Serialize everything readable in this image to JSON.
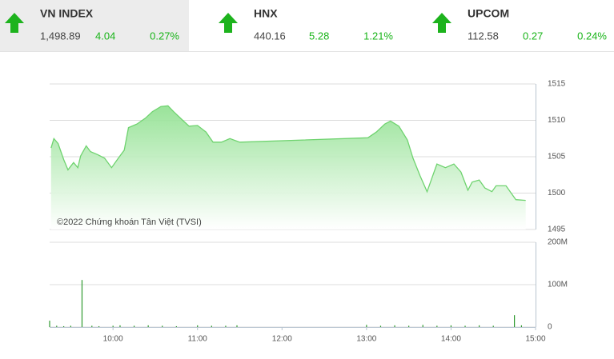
{
  "header": {
    "indices": [
      {
        "name": "VN INDEX",
        "value": "1,498.89",
        "change": "4.04",
        "percent": "0.27%"
      },
      {
        "name": "HNX",
        "value": "440.16",
        "change": "5.28",
        "percent": "1.21%"
      },
      {
        "name": "UPCOM",
        "value": "112.58",
        "change": "0.27",
        "percent": "0.24%"
      }
    ]
  },
  "chart_data": [
    {
      "type": "area",
      "annotation": "©2022 Chứng khoán Tân Việt (TVSI)",
      "xlim": [
        "09:15",
        "15:00"
      ],
      "ylim": [
        1495,
        1515
      ],
      "yticks": [
        1495,
        1500,
        1505,
        1510,
        1515
      ],
      "grid": true,
      "x": [
        "09:16",
        "09:18",
        "09:21",
        "09:25",
        "09:28",
        "09:32",
        "09:35",
        "09:37",
        "09:41",
        "09:44",
        "09:49",
        "09:54",
        "09:59",
        "10:03",
        "10:08",
        "10:11",
        "10:17",
        "10:23",
        "10:28",
        "10:34",
        "10:39",
        "10:43",
        "10:49",
        "10:54",
        "11:00",
        "11:06",
        "11:11",
        "11:17",
        "11:23",
        "11:30",
        "13:01",
        "13:07",
        "13:13",
        "13:17",
        "13:23",
        "13:29",
        "13:33",
        "13:38",
        "13:43",
        "13:47",
        "13:50",
        "13:56",
        "14:02",
        "14:07",
        "14:12",
        "14:15",
        "14:20",
        "14:24",
        "14:29",
        "14:32",
        "14:39",
        "14:46",
        "14:53"
      ],
      "series": [
        {
          "color": "#6fd36f",
          "values": [
            1506.2,
            1507.5,
            1506.8,
            1504.6,
            1503.2,
            1504.2,
            1503.5,
            1505.1,
            1506.5,
            1505.7,
            1505.3,
            1504.8,
            1503.5,
            1504.6,
            1505.9,
            1509.0,
            1509.5,
            1510.3,
            1511.2,
            1511.9,
            1512.0,
            1511.2,
            1510.1,
            1509.2,
            1509.3,
            1508.4,
            1507.0,
            1507.0,
            1507.5,
            1507.0,
            1507.6,
            1508.4,
            1509.5,
            1509.9,
            1509.2,
            1507.3,
            1504.8,
            1502.4,
            1500.2,
            1502.4,
            1504.0,
            1503.5,
            1504.0,
            1502.9,
            1500.4,
            1501.5,
            1501.8,
            1500.7,
            1500.2,
            1501.0,
            1501.0,
            1499.1,
            1499.0
          ]
        }
      ]
    },
    {
      "type": "bar",
      "color": "#2f9a2f",
      "xlim": [
        "09:15",
        "15:00"
      ],
      "xticks": [
        "10:00",
        "11:00",
        "12:00",
        "13:00",
        "14:00",
        "15:00"
      ],
      "ylim": [
        0,
        200000000
      ],
      "yticks": [
        0,
        {
          "value": 100000000,
          "label": "100M"
        },
        {
          "value": 200000000,
          "label": "200M"
        }
      ],
      "grid": true,
      "x": [
        "09:15",
        "09:20",
        "09:25",
        "09:30",
        "09:38",
        "09:45",
        "09:50",
        "10:00",
        "10:05",
        "10:15",
        "10:25",
        "10:35",
        "10:45",
        "11:00",
        "11:10",
        "11:20",
        "11:28",
        "13:00",
        "13:10",
        "13:20",
        "13:30",
        "13:40",
        "13:50",
        "14:00",
        "14:10",
        "14:20",
        "14:30",
        "14:45",
        "14:50"
      ],
      "values": [
        15000000,
        3000000,
        2000000,
        3000000,
        111000000,
        3000000,
        2000000,
        3000000,
        4000000,
        3000000,
        4000000,
        3000000,
        2000000,
        4000000,
        3000000,
        3000000,
        4000000,
        5000000,
        3000000,
        4000000,
        3000000,
        5000000,
        3000000,
        4000000,
        3000000,
        4000000,
        3000000,
        28000000,
        4000000
      ]
    }
  ]
}
